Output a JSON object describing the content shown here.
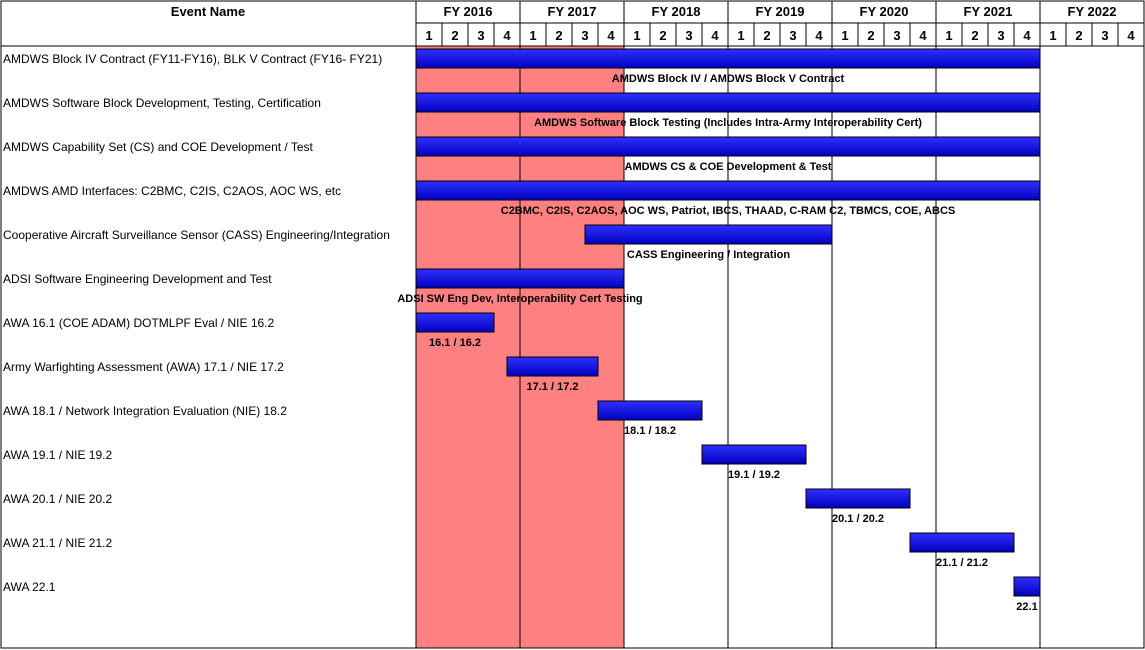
{
  "chart_data": {
    "type": "gantt",
    "header": {
      "event_name": "Event Name"
    },
    "fiscal_years": [
      "FY 2016",
      "FY 2017",
      "FY 2018",
      "FY 2019",
      "FY 2020",
      "FY 2021",
      "FY 2022"
    ],
    "quarters": [
      "1",
      "2",
      "3",
      "4"
    ],
    "shaded_period": {
      "start": 0,
      "end": 8,
      "color": "#ff8080"
    },
    "bar_color": "#0000c0",
    "tasks": [
      {
        "name": "AMDWS Block IV Contract (FY11-FY16), BLK V Contract (FY16- FY21)",
        "start": 0,
        "end": 24,
        "label": "AMDWS Block IV / AMDWS Block V Contract"
      },
      {
        "name": "AMDWS Software Block Development, Testing, Certification",
        "start": 0,
        "end": 24,
        "label": "AMDWS Software Block Testing (Includes Intra-Army Interoperability Cert)"
      },
      {
        "name": "AMDWS Capability Set (CS) and COE Development / Test",
        "start": 0,
        "end": 24,
        "label": "AMDWS CS & COE Development & Test"
      },
      {
        "name": "AMDWS AMD Interfaces: C2BMC, C2IS, C2AOS, AOC WS, etc",
        "start": 0,
        "end": 24,
        "label": "C2BMC, C2IS, C2AOS, AOC WS, Patriot, IBCS, THAAD, C-RAM C2, TBMCS, COE, ABCS"
      },
      {
        "name": "Cooperative Aircraft Surveillance Sensor (CASS) Engineering/Integration",
        "start": 6.5,
        "end": 16,
        "label": "CASS Engineering / Integration"
      },
      {
        "name": "ADSI Software Engineering Development and Test",
        "start": 0,
        "end": 8,
        "label": "ADSI SW Eng Dev, Interoperability Cert Testing"
      },
      {
        "name": "AWA 16.1 (COE ADAM) DOTMLPF Eval / NIE 16.2",
        "start": 0,
        "end": 3,
        "label": "16.1 / 16.2"
      },
      {
        "name": "Army Warfighting Assessment (AWA) 17.1 / NIE 17.2",
        "start": 3.5,
        "end": 7,
        "label": "17.1 / 17.2"
      },
      {
        "name": "AWA 18.1 / Network Integration Evaluation (NIE) 18.2",
        "start": 7,
        "end": 11,
        "label": "18.1 / 18.2"
      },
      {
        "name": "AWA 19.1 / NIE 19.2",
        "start": 11,
        "end": 15,
        "label": "19.1 / 19.2"
      },
      {
        "name": "AWA 20.1 / NIE 20.2",
        "start": 15,
        "end": 19,
        "label": "20.1 / 20.2"
      },
      {
        "name": "AWA 21.1 / NIE 21.2",
        "start": 19,
        "end": 23,
        "label": "21.1 / 21.2"
      },
      {
        "name": "AWA 22.1",
        "start": 23,
        "end": 24,
        "label": "22.1"
      }
    ]
  }
}
